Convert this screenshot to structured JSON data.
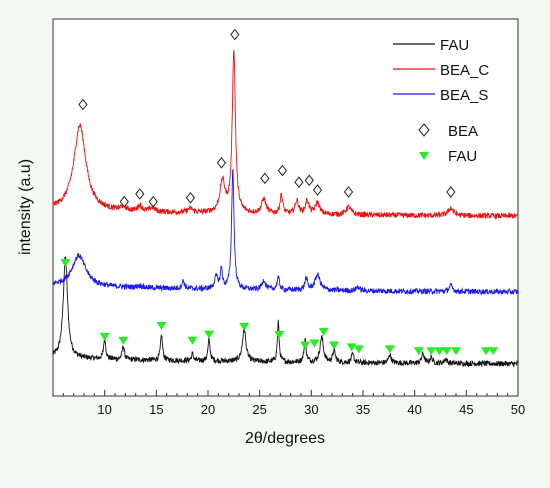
{
  "chart_data": {
    "type": "line",
    "title": "",
    "xlabel": "2θ/degrees",
    "ylabel": "intensity (a.u)",
    "xlim": [
      5,
      50
    ],
    "xticks": [
      10,
      15,
      20,
      25,
      30,
      35,
      40,
      45,
      50
    ],
    "yticks_shown": false,
    "grid": false,
    "legend_placement": "top-right",
    "series": [
      {
        "name": "FAU",
        "color": "#111111",
        "baseline": 0.1,
        "peaks": [
          [
            6.2,
            2.6,
            0.25
          ],
          [
            10.0,
            0.55,
            0.12
          ],
          [
            11.8,
            0.35,
            0.12
          ],
          [
            15.5,
            0.65,
            0.12
          ],
          [
            18.5,
            0.18,
            0.12
          ],
          [
            20.1,
            0.55,
            0.12
          ],
          [
            23.5,
            0.85,
            0.2
          ],
          [
            26.8,
            1.05,
            0.1
          ],
          [
            29.4,
            0.6,
            0.12
          ],
          [
            31.0,
            0.65,
            0.2
          ],
          [
            32.2,
            0.3,
            0.15
          ],
          [
            34.0,
            0.2,
            0.15
          ],
          [
            37.6,
            0.22,
            0.15
          ],
          [
            40.8,
            0.25,
            0.15
          ],
          [
            41.6,
            0.15,
            0.15
          ],
          [
            43.0,
            0.12,
            0.15
          ]
        ]
      },
      {
        "name": "BEA_C",
        "color": "#ee1111",
        "baseline": 3.9,
        "peaks": [
          [
            7.6,
            2.2,
            0.7
          ],
          [
            11.8,
            0.1,
            0.3
          ],
          [
            13.4,
            0.15,
            0.25
          ],
          [
            14.6,
            0.1,
            0.3
          ],
          [
            18.3,
            0.1,
            0.3
          ],
          [
            21.4,
            0.8,
            0.3
          ],
          [
            22.5,
            4.2,
            0.18
          ],
          [
            25.4,
            0.38,
            0.25
          ],
          [
            27.1,
            0.5,
            0.15
          ],
          [
            28.6,
            0.35,
            0.2
          ],
          [
            29.6,
            0.35,
            0.2
          ],
          [
            30.6,
            0.3,
            0.25
          ],
          [
            33.6,
            0.2,
            0.3
          ],
          [
            43.5,
            0.2,
            0.3
          ]
        ]
      },
      {
        "name": "BEA_S",
        "color": "#1a1aee",
        "baseline": 1.95,
        "peaks": [
          [
            7.5,
            0.8,
            0.8
          ],
          [
            13.4,
            0.05,
            0.3
          ],
          [
            17.6,
            0.2,
            0.15
          ],
          [
            20.8,
            0.3,
            0.2
          ],
          [
            21.3,
            0.5,
            0.12
          ],
          [
            22.4,
            3.1,
            0.14
          ],
          [
            25.4,
            0.25,
            0.2
          ],
          [
            26.8,
            0.3,
            0.15
          ],
          [
            29.5,
            0.3,
            0.15
          ],
          [
            30.6,
            0.4,
            0.3
          ],
          [
            34.5,
            0.1,
            0.2
          ],
          [
            43.5,
            0.15,
            0.2
          ]
        ]
      }
    ],
    "markers": [
      {
        "name": "BEA",
        "symbol": "open-diamond",
        "color": "#222222",
        "points": [
          [
            7.9,
            6.8
          ],
          [
            11.9,
            4.3
          ],
          [
            13.4,
            4.5
          ],
          [
            14.7,
            4.3
          ],
          [
            18.3,
            4.4
          ],
          [
            21.3,
            5.3
          ],
          [
            22.6,
            8.6
          ],
          [
            25.5,
            4.9
          ],
          [
            27.2,
            5.1
          ],
          [
            28.8,
            4.8
          ],
          [
            29.8,
            4.85
          ],
          [
            30.6,
            4.6
          ],
          [
            33.6,
            4.55
          ],
          [
            43.5,
            4.55
          ]
        ]
      },
      {
        "name": "FAU",
        "symbol": "filled-down-triangle",
        "color": "#22ee22",
        "points": [
          [
            6.2,
            2.72
          ],
          [
            10.0,
            0.82
          ],
          [
            11.8,
            0.72
          ],
          [
            15.5,
            1.1
          ],
          [
            18.5,
            0.72
          ],
          [
            20.1,
            0.88
          ],
          [
            23.5,
            1.08
          ],
          [
            26.9,
            0.87
          ],
          [
            29.4,
            0.6
          ],
          [
            30.3,
            0.65
          ],
          [
            31.2,
            0.95
          ],
          [
            32.2,
            0.6
          ],
          [
            33.9,
            0.55
          ],
          [
            34.6,
            0.5
          ],
          [
            37.6,
            0.5
          ],
          [
            40.4,
            0.45
          ],
          [
            41.6,
            0.45
          ],
          [
            42.4,
            0.45
          ],
          [
            43.1,
            0.45
          ],
          [
            44.0,
            0.45
          ],
          [
            46.9,
            0.45
          ],
          [
            47.6,
            0.45
          ]
        ]
      }
    ]
  }
}
